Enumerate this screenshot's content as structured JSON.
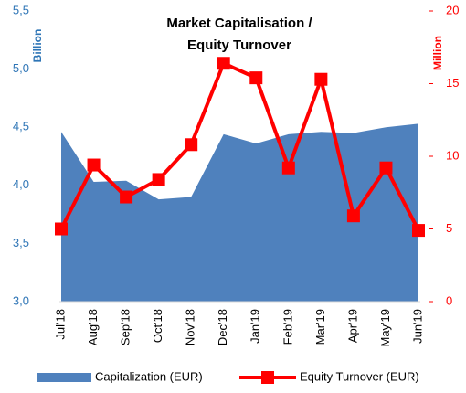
{
  "chart_data": {
    "type": "area_line",
    "title": [
      "Market Capitalisation /",
      "Equity Turnover"
    ],
    "ylabel": "Billion",
    "y2label": "Million",
    "categories": [
      "Jul'18",
      "Aug'18",
      "Sep'18",
      "Oct'18",
      "Nov'18",
      "Dec'18",
      "Jan'19",
      "Feb'19",
      "Mar'19",
      "Apr'19",
      "May'19",
      "Jun'19"
    ],
    "series": [
      {
        "name": "Capitalization (EUR)",
        "color": "#4f81bd",
        "kind": "area",
        "values": [
          4.46,
          4.03,
          4.04,
          3.88,
          3.9,
          4.44,
          4.36,
          4.44,
          4.46,
          4.45,
          4.5,
          4.53
        ]
      },
      {
        "name": "Equity Turnover (EUR)",
        "color": "#ff0000",
        "kind": "line",
        "axis": "y2",
        "values": [
          5.0,
          9.4,
          7.2,
          8.4,
          10.8,
          16.4,
          15.4,
          9.2,
          15.3,
          5.9,
          9.2,
          4.9
        ]
      }
    ],
    "ylim": [
      3,
      5.5
    ],
    "yticks": [
      {
        "value": 3,
        "label": "3,0"
      },
      {
        "value": 3.5,
        "label": "3,5"
      },
      {
        "value": 4,
        "label": "4,0"
      },
      {
        "value": 4.5,
        "label": "4,5"
      },
      {
        "value": 5,
        "label": "5,0"
      },
      {
        "value": 5.5,
        "label": "5,5"
      }
    ],
    "y2lim": [
      0,
      20
    ],
    "y2ticks": [
      0,
      5,
      10,
      15,
      20
    ],
    "ytick_color": "#2e75b6",
    "y2tick_color": "#ff0000"
  }
}
